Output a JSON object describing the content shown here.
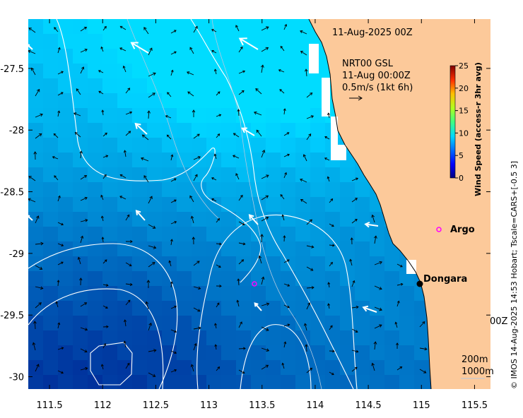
{
  "title": "11-Aug-2025 00Z",
  "product": {
    "line1": "NRT00 GSL",
    "line2": "11-Aug 00:00Z",
    "scale": "0.5m/s (1kt 6h)"
  },
  "colorbar": {
    "label": "Wind Speed (access-r 3hr avg)",
    "ticks": [
      "25",
      "20",
      "15",
      "10",
      "5",
      "0"
    ],
    "range": [
      0,
      25
    ],
    "colors": [
      "#00007f",
      "#0000ff",
      "#0080ff",
      "#00e5ff",
      "#40ff40",
      "#d4ff00",
      "#ffb000",
      "#ff3000",
      "#800000"
    ]
  },
  "axes": {
    "x_ticks": [
      "111.5",
      "112",
      "112.5",
      "113",
      "113.5",
      "114",
      "114.5",
      "115",
      "115.5"
    ],
    "y_ticks": [
      "-27.5",
      "-28",
      "-28.5",
      "-29",
      "-29.5",
      "-30"
    ],
    "x_values": [
      111.5,
      112,
      112.5,
      113,
      113.5,
      114,
      114.5,
      115,
      115.5
    ],
    "y_values": [
      -27.5,
      -28,
      -28.5,
      -29,
      -29.5,
      -30
    ],
    "lon_range": [
      111.3,
      115.65
    ],
    "lat_range": [
      -30.1,
      -27.1
    ]
  },
  "places": [
    {
      "name": "Argo",
      "lon": 115.12,
      "lat": -28.82,
      "marker": "circle-magenta"
    },
    {
      "name": "Dongara",
      "lon": 114.93,
      "lat": -29.26,
      "marker": "dot-black"
    }
  ],
  "argo_float_offshore": {
    "lon": 113.42,
    "lat": -29.24
  },
  "depth_labels": [
    "200m",
    "1000m"
  ],
  "partial_label": "00Z",
  "credit": "© IMOS 14-Aug-2025 14:53 Hobart; Tscale=CARS+[-0.5 3]",
  "colors": {
    "land": "#fcc99a",
    "contour": "#ffffff",
    "argo": "#ff00ff"
  }
}
